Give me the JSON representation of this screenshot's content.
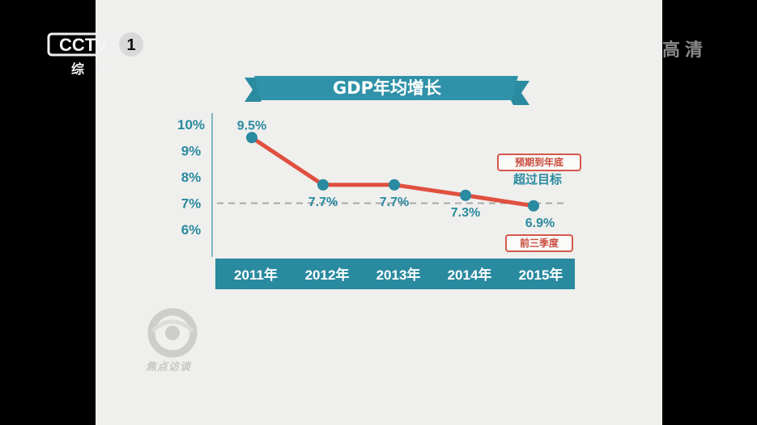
{
  "channel": {
    "logo_text": "CCTV",
    "logo_number": "1",
    "name": "综合",
    "hd_badge": "高清"
  },
  "banner": {
    "title": "GDP年均增长"
  },
  "chart_data": {
    "type": "line",
    "title": "GDP年均增长",
    "categories": [
      "2011年",
      "2012年",
      "2013年",
      "2014年",
      "2015年"
    ],
    "values": [
      9.5,
      7.7,
      7.7,
      7.3,
      6.9
    ],
    "data_labels": [
      "9.5%",
      "7.7%",
      "7.7%",
      "7.3%",
      "6.9%"
    ],
    "ytick_labels": [
      "10%",
      "9%",
      "8%",
      "7%",
      "6%"
    ],
    "ytick_values": [
      10,
      9,
      8,
      7,
      6
    ],
    "ylim": [
      5,
      10
    ],
    "reference_line": 7,
    "colors": {
      "line": "#e0503f",
      "marker": "#2a8aa0",
      "axis_band": "#2a8aa0"
    },
    "grid": false
  },
  "annotations": {
    "forecast_box": "预期到年底",
    "forecast_text": "超过目标",
    "q3_box": "前三季度"
  },
  "watermark": {
    "text": "焦点访谈"
  }
}
